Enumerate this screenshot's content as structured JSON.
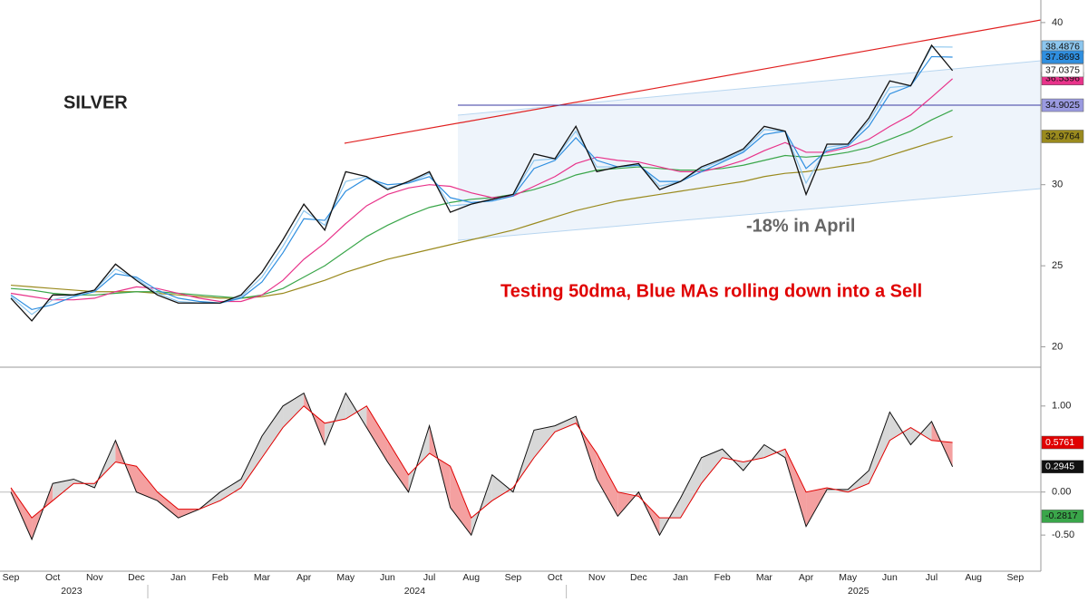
{
  "chart_data": [
    {
      "type": "line",
      "title": "SILVER",
      "annotations": [
        "-18% in April",
        "Testing 50dma, Blue MAs rolling down into a Sell"
      ],
      "categories": [
        "Sep",
        null,
        "Oct",
        null,
        "Nov",
        null,
        "Dec",
        null,
        "Jan",
        null,
        "Feb",
        null,
        "Mar",
        null,
        "Apr",
        null,
        "May",
        null,
        "Jun",
        null,
        "Jul",
        null,
        "Aug",
        null,
        "Sep",
        null,
        "Oct",
        null,
        "Nov",
        null,
        "Dec",
        null,
        "Jan",
        null,
        "Feb",
        null,
        "Mar",
        null,
        "Apr",
        null,
        "May",
        null,
        "Jun",
        null,
        "Jul",
        null,
        "Aug",
        null,
        "Sep",
        null
      ],
      "years": [
        "2023",
        "2024",
        "2025"
      ],
      "ylim": [
        18.8,
        41
      ],
      "yticks": [
        20,
        25,
        30,
        35,
        40
      ],
      "hline": {
        "value": 34.9025,
        "color": "#3a3aa0"
      },
      "series": [
        {
          "color": "#9a8a1e",
          "label_last": true,
          "values": [
            23.8,
            23.7,
            23.6,
            23.5,
            23.4,
            23.4,
            23.4,
            23.3,
            23.2,
            23.1,
            23.0,
            23.0,
            23.1,
            23.3,
            23.7,
            24.1,
            24.6,
            25.0,
            25.4,
            25.7,
            26.0,
            26.3,
            26.6,
            26.9,
            27.2,
            27.6,
            28.0,
            28.4,
            28.7,
            29.0,
            29.2,
            29.4,
            29.6,
            29.8,
            30.0,
            30.2,
            30.5,
            30.7,
            30.8,
            31.0,
            31.2,
            31.4,
            31.8,
            32.2,
            32.6,
            32.9764,
            null,
            null,
            null,
            null
          ]
        },
        {
          "color": "#3aa64a",
          "label_last": false,
          "values": [
            23.6,
            23.5,
            23.3,
            23.2,
            23.2,
            23.3,
            23.4,
            23.4,
            23.3,
            23.2,
            23.1,
            23.0,
            23.2,
            23.6,
            24.3,
            25.0,
            25.9,
            26.8,
            27.5,
            28.1,
            28.6,
            28.9,
            29.1,
            29.2,
            29.4,
            29.7,
            30.1,
            30.6,
            30.9,
            31.0,
            31.1,
            31.0,
            30.9,
            30.9,
            31.0,
            31.2,
            31.5,
            31.8,
            31.7,
            31.8,
            32.0,
            32.3,
            32.8,
            33.3,
            34.0,
            34.6,
            null,
            null,
            null,
            null
          ]
        },
        {
          "color": "#e8338a",
          "label_last": true,
          "values": [
            23.3,
            23.1,
            22.9,
            22.9,
            23.0,
            23.4,
            23.7,
            23.6,
            23.3,
            23.0,
            22.8,
            22.8,
            23.2,
            24.1,
            25.4,
            26.4,
            27.6,
            28.7,
            29.4,
            29.8,
            30.0,
            29.9,
            29.5,
            29.2,
            29.3,
            29.9,
            30.5,
            31.3,
            31.7,
            31.5,
            31.4,
            31.1,
            30.8,
            30.8,
            31.1,
            31.5,
            32.1,
            32.6,
            32.0,
            32.0,
            32.3,
            32.8,
            33.6,
            34.3,
            35.4,
            36.5396,
            null,
            null,
            null,
            null
          ]
        },
        {
          "color": "#8cc6ee",
          "label_last": true,
          "values": [
            23.1,
            22.0,
            22.9,
            23.2,
            23.5,
            24.8,
            24.2,
            23.3,
            22.8,
            22.7,
            22.7,
            23.1,
            24.3,
            26.2,
            28.4,
            27.5,
            30.2,
            30.5,
            29.8,
            30.1,
            30.7,
            28.7,
            28.8,
            29.1,
            29.4,
            31.5,
            31.6,
            33.3,
            31.1,
            31.1,
            31.3,
            29.9,
            30.2,
            31.0,
            31.5,
            32.1,
            33.4,
            33.3,
            30.1,
            32.3,
            32.5,
            33.9,
            36.0,
            36.1,
            38.5,
            38.4876,
            null,
            null,
            null,
            null
          ]
        },
        {
          "color": "#2f8fe0",
          "label_last": true,
          "values": [
            23.2,
            22.3,
            22.6,
            23.1,
            23.4,
            24.5,
            24.3,
            23.5,
            23.0,
            22.8,
            22.7,
            23.0,
            24.0,
            25.8,
            27.9,
            27.8,
            29.6,
            30.4,
            30.0,
            30.1,
            30.5,
            29.2,
            28.9,
            29.0,
            29.3,
            31.0,
            31.5,
            32.9,
            31.5,
            31.1,
            31.2,
            30.2,
            30.2,
            30.8,
            31.4,
            32.0,
            33.1,
            33.3,
            31.0,
            32.1,
            32.4,
            33.6,
            35.6,
            36.1,
            37.9,
            37.8693,
            null,
            null,
            null,
            null
          ]
        },
        {
          "color": "#111111",
          "label_last": true,
          "values": [
            23.0,
            21.6,
            23.2,
            23.2,
            23.5,
            25.1,
            24.1,
            23.2,
            22.7,
            22.7,
            22.7,
            23.2,
            24.6,
            26.6,
            28.8,
            27.2,
            30.8,
            30.5,
            29.7,
            30.2,
            30.8,
            28.3,
            28.8,
            29.1,
            29.4,
            31.9,
            31.6,
            33.6,
            30.8,
            31.1,
            31.3,
            29.7,
            30.2,
            31.1,
            31.6,
            32.2,
            33.6,
            33.3,
            29.4,
            32.5,
            32.5,
            34.1,
            36.4,
            36.1,
            38.6,
            37.0375,
            null,
            null,
            null,
            null
          ]
        }
      ]
    },
    {
      "type": "oscillator",
      "ylim": [
        -0.92,
        1.43
      ],
      "yticks": [
        {
          "value": 1,
          "label": "1.00"
        },
        {
          "value": 0,
          "label": "0.00"
        },
        {
          "value": -0.5,
          "label": "-0.50"
        }
      ],
      "marker": {
        "value": -0.2817,
        "color": "#3aa64a"
      },
      "series": [
        {
          "color": "#111111",
          "values": [
            0,
            -0.55,
            0.1,
            0.15,
            0.05,
            0.6,
            0,
            -0.1,
            -0.3,
            -0.2,
            0,
            0.15,
            0.65,
            1.0,
            1.15,
            0.55,
            1.15,
            0.75,
            0.35,
            0,
            0.77,
            -0.18,
            -0.5,
            0.2,
            0,
            0.72,
            0.77,
            0.88,
            0.15,
            -0.28,
            0,
            -0.5,
            -0.07,
            0.4,
            0.5,
            0.25,
            0.55,
            0.4,
            -0.4,
            0.03,
            0.03,
            0.25,
            0.93,
            0.55,
            0.82,
            0.2945,
            null,
            null,
            null,
            null
          ]
        },
        {
          "color": "#e00000",
          "values": [
            0.05,
            -0.3,
            -0.1,
            0.1,
            0.1,
            0.35,
            0.3,
            0,
            -0.2,
            -0.2,
            -0.1,
            0.05,
            0.4,
            0.75,
            1.0,
            0.8,
            0.85,
            1.0,
            0.6,
            0.2,
            0.45,
            0.3,
            -0.3,
            -0.1,
            0.05,
            0.4,
            0.7,
            0.8,
            0.45,
            0,
            -0.05,
            -0.3,
            -0.3,
            0.1,
            0.4,
            0.35,
            0.4,
            0.5,
            0,
            0.05,
            0,
            0.1,
            0.6,
            0.75,
            0.6,
            0.5761,
            null,
            null,
            null,
            null
          ]
        }
      ]
    }
  ]
}
